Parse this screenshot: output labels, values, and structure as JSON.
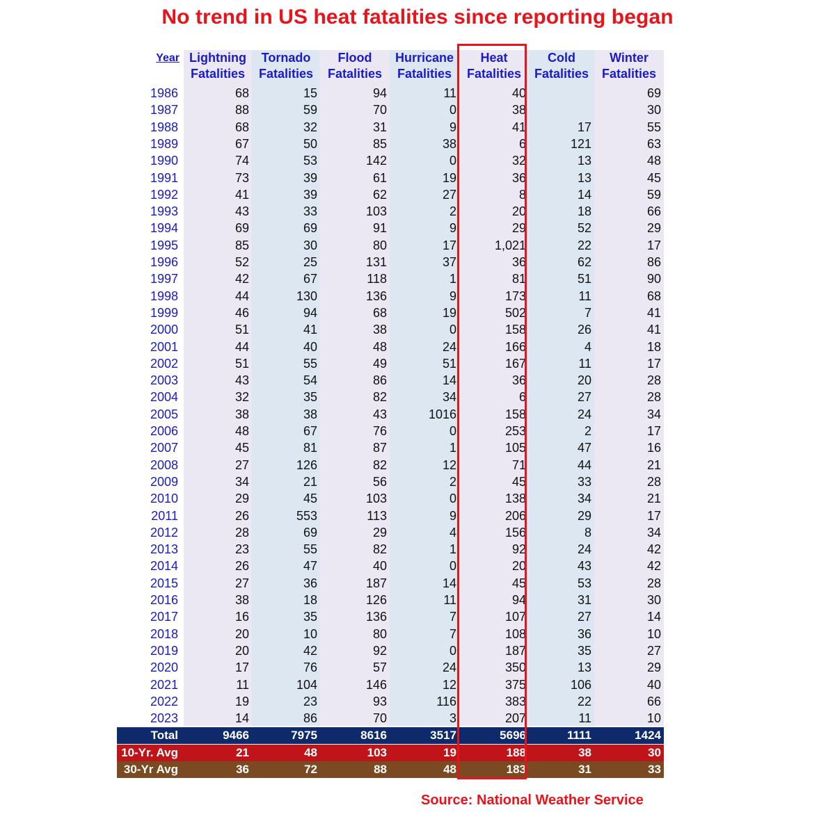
{
  "title": "No trend in US heat fatalities since reporting began",
  "headers": [
    [
      "Year",
      ""
    ],
    [
      "Lightning",
      "Fatalities"
    ],
    [
      "Tornado",
      "Fatalities"
    ],
    [
      "Flood",
      "Fatalities"
    ],
    [
      "Hurricane",
      "Fatalities"
    ],
    [
      "Heat",
      "Fatalities"
    ],
    [
      "Cold",
      "Fatalities"
    ],
    [
      "Winter",
      "Fatalities"
    ]
  ],
  "rows": [
    [
      "1986",
      "68",
      "15",
      "94",
      "11",
      "40",
      "",
      "69"
    ],
    [
      "1987",
      "88",
      "59",
      "70",
      "0",
      "38",
      "",
      "30"
    ],
    [
      "1988",
      "68",
      "32",
      "31",
      "9",
      "41",
      "17",
      "55"
    ],
    [
      "1989",
      "67",
      "50",
      "85",
      "38",
      "6",
      "121",
      "63"
    ],
    [
      "1990",
      "74",
      "53",
      "142",
      "0",
      "32",
      "13",
      "48"
    ],
    [
      "1991",
      "73",
      "39",
      "61",
      "19",
      "36",
      "13",
      "45"
    ],
    [
      "1992",
      "41",
      "39",
      "62",
      "27",
      "8",
      "14",
      "59"
    ],
    [
      "1993",
      "43",
      "33",
      "103",
      "2",
      "20",
      "18",
      "66"
    ],
    [
      "1994",
      "69",
      "69",
      "91",
      "9",
      "29",
      "52",
      "29"
    ],
    [
      "1995",
      "85",
      "30",
      "80",
      "17",
      "1,021",
      "22",
      "17"
    ],
    [
      "1996",
      "52",
      "25",
      "131",
      "37",
      "36",
      "62",
      "86"
    ],
    [
      "1997",
      "42",
      "67",
      "118",
      "1",
      "81",
      "51",
      "90"
    ],
    [
      "1998",
      "44",
      "130",
      "136",
      "9",
      "173",
      "11",
      "68"
    ],
    [
      "1999",
      "46",
      "94",
      "68",
      "19",
      "502",
      "7",
      "41"
    ],
    [
      "2000",
      "51",
      "41",
      "38",
      "0",
      "158",
      "26",
      "41"
    ],
    [
      "2001",
      "44",
      "40",
      "48",
      "24",
      "166",
      "4",
      "18"
    ],
    [
      "2002",
      "51",
      "55",
      "49",
      "51",
      "167",
      "11",
      "17"
    ],
    [
      "2003",
      "43",
      "54",
      "86",
      "14",
      "36",
      "20",
      "28"
    ],
    [
      "2004",
      "32",
      "35",
      "82",
      "34",
      "6",
      "27",
      "28"
    ],
    [
      "2005",
      "38",
      "38",
      "43",
      "1016",
      "158",
      "24",
      "34"
    ],
    [
      "2006",
      "48",
      "67",
      "76",
      "0",
      "253",
      "2",
      "17"
    ],
    [
      "2007",
      "45",
      "81",
      "87",
      "1",
      "105",
      "47",
      "16"
    ],
    [
      "2008",
      "27",
      "126",
      "82",
      "12",
      "71",
      "44",
      "21"
    ],
    [
      "2009",
      "34",
      "21",
      "56",
      "2",
      "45",
      "33",
      "28"
    ],
    [
      "2010",
      "29",
      "45",
      "103",
      "0",
      "138",
      "34",
      "21"
    ],
    [
      "2011",
      "26",
      "553",
      "113",
      "9",
      "206",
      "29",
      "17"
    ],
    [
      "2012",
      "28",
      "69",
      "29",
      "4",
      "156",
      "8",
      "34"
    ],
    [
      "2013",
      "23",
      "55",
      "82",
      "1",
      "92",
      "24",
      "42"
    ],
    [
      "2014",
      "26",
      "47",
      "40",
      "0",
      "20",
      "43",
      "42"
    ],
    [
      "2015",
      "27",
      "36",
      "187",
      "14",
      "45",
      "53",
      "28"
    ],
    [
      "2016",
      "38",
      "18",
      "126",
      "11",
      "94",
      "31",
      "30"
    ],
    [
      "2017",
      "16",
      "35",
      "136",
      "7",
      "107",
      "27",
      "14"
    ],
    [
      "2018",
      "20",
      "10",
      "80",
      "7",
      "108",
      "36",
      "10"
    ],
    [
      "2019",
      "20",
      "42",
      "92",
      "0",
      "187",
      "35",
      "27"
    ],
    [
      "2020",
      "17",
      "76",
      "57",
      "24",
      "350",
      "13",
      "29"
    ],
    [
      "2021",
      "11",
      "104",
      "146",
      "12",
      "375",
      "106",
      "40"
    ],
    [
      "2022",
      "19",
      "23",
      "93",
      "116",
      "383",
      "22",
      "66"
    ],
    [
      "2023",
      "14",
      "86",
      "70",
      "3",
      "207",
      "11",
      "10"
    ]
  ],
  "summary": [
    {
      "key": "total",
      "cells": [
        "Total",
        "9466",
        "7975",
        "8616",
        "3517",
        "5696",
        "1111",
        "1424"
      ],
      "color": "#0e2a6b"
    },
    {
      "key": "avg10",
      "cells": [
        "10-Yr. Avg",
        "21",
        "48",
        "103",
        "19",
        "188",
        "38",
        "30"
      ],
      "color": "#c0141b"
    },
    {
      "key": "avg30",
      "cells": [
        "30-Yr Avg",
        "36",
        "72",
        "88",
        "48",
        "183",
        "31",
        "33"
      ],
      "color": "#7a4a22"
    }
  ],
  "highlight": {
    "column": "Heat",
    "color": "#e8141b"
  },
  "source": "Source: National Weather Service"
}
